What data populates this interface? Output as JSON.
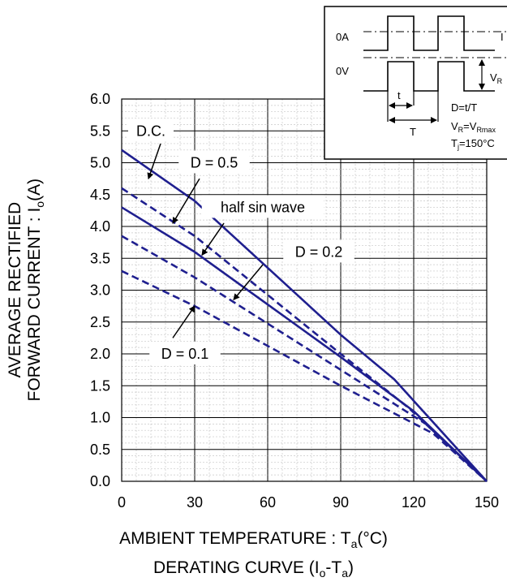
{
  "chart_data": {
    "type": "line",
    "xlabel": {
      "main": "AMBIENT TEMPERATURE : T",
      "sub": "a",
      "tail": "(°C)"
    },
    "caption": {
      "main": "DERATING CURVE (I",
      "sub1": "o",
      "mid": "-T",
      "sub2": "a",
      "tail": ")"
    },
    "ylabel_line1": "AVERAGE RECTIFIED",
    "ylabel_line2": {
      "main": "FORWARD CURRENT : I",
      "sub": "o",
      "tail": "(A)"
    },
    "xlim": [
      0,
      150
    ],
    "ylim": [
      0,
      6
    ],
    "x_ticks": [
      0,
      30,
      60,
      90,
      120,
      150
    ],
    "x_tick_labels": [
      "0",
      "30",
      "60",
      "90",
      "120",
      "150"
    ],
    "y_ticks": [
      0,
      0.5,
      1,
      1.5,
      2,
      2.5,
      3,
      3.5,
      4,
      4.5,
      5,
      5.5,
      6
    ],
    "y_tick_labels": [
      "0.0",
      "0.5",
      "1.0",
      "1.5",
      "2.0",
      "2.5",
      "3.0",
      "3.5",
      "4.0",
      "4.5",
      "5.0",
      "5.5",
      "6.0"
    ],
    "grid": true,
    "line_color": "#1f1f8f",
    "series": [
      {
        "name": "D.C.",
        "style": "solid",
        "x": [
          0,
          30,
          90,
          112,
          150
        ],
        "y": [
          5.2,
          4.4,
          2.3,
          1.6,
          0
        ]
      },
      {
        "name": "D = 0.5",
        "style": "dashed",
        "x": [
          0,
          30,
          90,
          118,
          150
        ],
        "y": [
          4.6,
          3.85,
          2.0,
          1.15,
          0
        ]
      },
      {
        "name": "half sin wave",
        "style": "solid",
        "x": [
          0,
          30,
          90,
          120,
          150
        ],
        "y": [
          4.3,
          3.6,
          1.95,
          1.1,
          0
        ]
      },
      {
        "name": "D = 0.2",
        "style": "dashed",
        "x": [
          0,
          30,
          90,
          125,
          150
        ],
        "y": [
          3.85,
          3.2,
          1.75,
          0.9,
          0
        ]
      },
      {
        "name": "D = 0.1",
        "style": "dashed",
        "x": [
          0,
          30,
          90,
          128,
          150
        ],
        "y": [
          3.3,
          2.75,
          1.5,
          0.75,
          0
        ]
      }
    ],
    "annotations": [
      {
        "text": "D.C.",
        "label_at": [
          12,
          5.5
        ],
        "arrow_from": [
          16,
          5.3
        ],
        "arrow_to": [
          11,
          4.75
        ]
      },
      {
        "text": "D = 0.5",
        "label_at": [
          38,
          5.0
        ],
        "arrow_from": [
          32,
          4.75
        ],
        "arrow_to": [
          21,
          4.05
        ]
      },
      {
        "text": "half sin wave",
        "label_at": [
          58,
          4.3
        ],
        "arrow_from": [
          42,
          4.05
        ],
        "arrow_to": [
          33,
          3.55
        ]
      },
      {
        "text": "D = 0.2",
        "label_at": [
          81,
          3.6
        ],
        "arrow_from": [
          58,
          3.4
        ],
        "arrow_to": [
          46,
          2.85
        ]
      },
      {
        "text": "D = 0.1",
        "label_at": [
          26,
          2.0
        ],
        "arrow_from": [
          21,
          2.25
        ],
        "arrow_to": [
          30,
          2.75
        ]
      }
    ],
    "inset": {
      "label_0A": "0A",
      "label_0V": "0V",
      "label_Io": "I",
      "label_VR": {
        "main": "V",
        "sub": "R"
      },
      "label_t": "t",
      "label_T": "T",
      "text_D": "D=t/T",
      "text_VR": {
        "main": "V",
        "sub1": "R",
        "mid": "=V",
        "sub2": "Rmax"
      },
      "text_Tj": {
        "main": "T",
        "sub": "j",
        "tail": "=150°C"
      }
    }
  }
}
